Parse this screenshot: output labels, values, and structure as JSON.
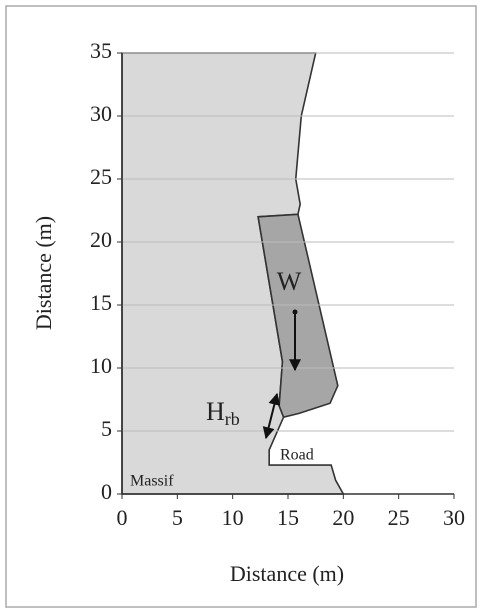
{
  "chart_data": {
    "type": "profile",
    "xlabel": "Distance (m)",
    "ylabel": "Distance (m)",
    "xlim": [
      0,
      30
    ],
    "ylim": [
      0,
      35
    ],
    "xticks": [
      0,
      5,
      10,
      15,
      20,
      25,
      30
    ],
    "yticks": [
      0,
      5,
      10,
      15,
      20,
      25,
      30,
      35
    ],
    "grid": true,
    "regions": [
      {
        "label": "Massif",
        "color": "#d9d9d9",
        "x": [
          0,
          17.5,
          16.2,
          15.7,
          16.1,
          15.9,
          12.3,
          14.5,
          14.2,
          14.6,
          13.3,
          13.3,
          18.9,
          19.3,
          20,
          0
        ],
        "y": [
          35,
          35,
          30,
          25,
          23,
          22.2,
          22,
          10.5,
          7,
          6.1,
          3.5,
          2.3,
          2.3,
          1.1,
          0,
          0
        ]
      },
      {
        "color": "#a6a6a6",
        "x": [
          12.3,
          15.9,
          19.5,
          18.8,
          16,
          14.6,
          14.2,
          14.5
        ],
        "y": [
          22,
          22.2,
          8.6,
          7.2,
          6.4,
          6.1,
          7,
          10.5
        ]
      }
    ],
    "annotations": [
      {
        "text": "W"
      },
      {
        "text": "H",
        "subscript": "rb"
      },
      {
        "text": "Road"
      }
    ]
  }
}
